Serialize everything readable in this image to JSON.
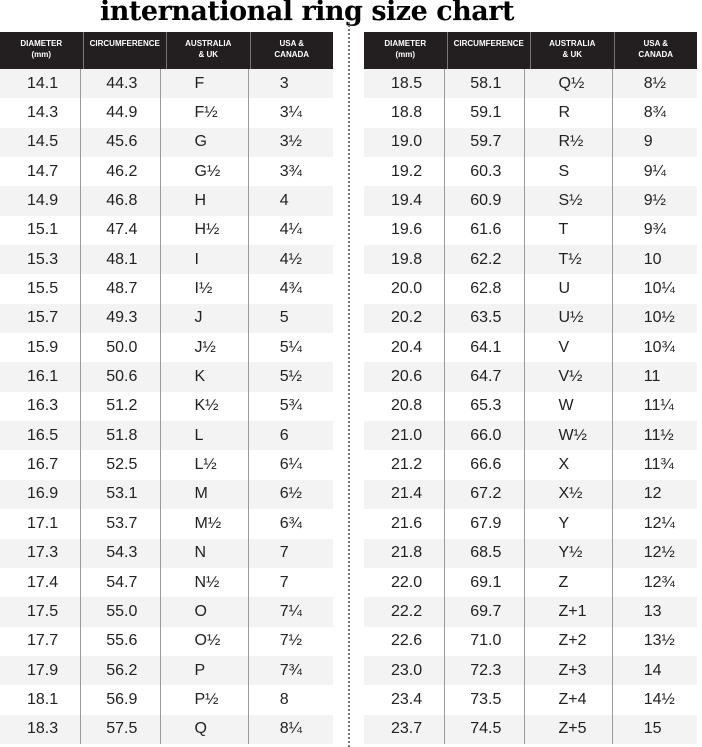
{
  "title": "international ring size chart",
  "headers": [
    "DIAMETER\n(mm)",
    "CIRCUMFERENCE",
    "AUSTRALIA\n& UK",
    "USA &\nCANADA"
  ],
  "left_rows": [
    [
      "14.1",
      "44.3",
      "F",
      "3"
    ],
    [
      "14.3",
      "44.9",
      "F½",
      "3¼"
    ],
    [
      "14.5",
      "45.6",
      "G",
      "3½"
    ],
    [
      "14.7",
      "46.2",
      "G½",
      "3¾"
    ],
    [
      "14.9",
      "46.8",
      "H",
      "4"
    ],
    [
      "15.1",
      "47.4",
      "H½",
      "4¼"
    ],
    [
      "15.3",
      "48.1",
      "I",
      "4½"
    ],
    [
      "15.5",
      "48.7",
      "I½",
      "4¾"
    ],
    [
      "15.7",
      "49.3",
      "J",
      "5"
    ],
    [
      "15.9",
      "50.0",
      "J½",
      "5¼"
    ],
    [
      "16.1",
      "50.6",
      "K",
      "5½"
    ],
    [
      "16.3",
      "51.2",
      "K½",
      "5¾"
    ],
    [
      "16.5",
      "51.8",
      "L",
      "6"
    ],
    [
      "16.7",
      "52.5",
      "L½",
      "6¼"
    ],
    [
      "16.9",
      "53.1",
      "M",
      "6½"
    ],
    [
      "17.1",
      "53.7",
      "M½",
      "6¾"
    ],
    [
      "17.3",
      "54.3",
      "N",
      "7"
    ],
    [
      "17.4",
      "54.7",
      "N½",
      "7"
    ],
    [
      "17.5",
      "55.0",
      "O",
      "7¼"
    ],
    [
      "17.7",
      "55.6",
      "O½",
      "7½"
    ],
    [
      "17.9",
      "56.2",
      "P",
      "7¾"
    ],
    [
      "18.1",
      "56.9",
      "P½",
      "8"
    ],
    [
      "18.3",
      "57.5",
      "Q",
      "8¼"
    ]
  ],
  "right_rows": [
    [
      "18.5",
      "58.1",
      "Q½",
      "8½"
    ],
    [
      "18.8",
      "59.1",
      "R",
      "8¾"
    ],
    [
      "19.0",
      "59.7",
      "R½",
      "9"
    ],
    [
      "19.2",
      "60.3",
      "S",
      "9¼"
    ],
    [
      "19.4",
      "60.9",
      "S½",
      "9½"
    ],
    [
      "19.6",
      "61.6",
      "T",
      "9¾"
    ],
    [
      "19.8",
      "62.2",
      "T½",
      "10"
    ],
    [
      "20.0",
      "62.8",
      "U",
      "10¼"
    ],
    [
      "20.2",
      "63.5",
      "U½",
      "10½"
    ],
    [
      "20.4",
      "64.1",
      "V",
      "10¾"
    ],
    [
      "20.6",
      "64.7",
      "V½",
      "11"
    ],
    [
      "20.8",
      "65.3",
      "W",
      "11¼"
    ],
    [
      "21.0",
      "66.0",
      "W½",
      "11½"
    ],
    [
      "21.2",
      "66.6",
      "X",
      "11¾"
    ],
    [
      "21.4",
      "67.2",
      "X½",
      "12"
    ],
    [
      "21.6",
      "67.9",
      "Y",
      "12¼"
    ],
    [
      "21.8",
      "68.5",
      "Y½",
      "12½"
    ],
    [
      "22.0",
      "69.1",
      "Z",
      "12¾"
    ],
    [
      "22.2",
      "69.7",
      "Z+1",
      "13"
    ],
    [
      "22.6",
      "71.0",
      "Z+2",
      "13½"
    ],
    [
      "23.0",
      "72.3",
      "Z+3",
      "14"
    ],
    [
      "23.4",
      "73.5",
      "Z+4",
      "14½"
    ],
    [
      "23.7",
      "74.5",
      "Z+5",
      "15"
    ]
  ],
  "colors": {
    "header_bg": "#231f20",
    "stripe": "#f2f3f2"
  }
}
